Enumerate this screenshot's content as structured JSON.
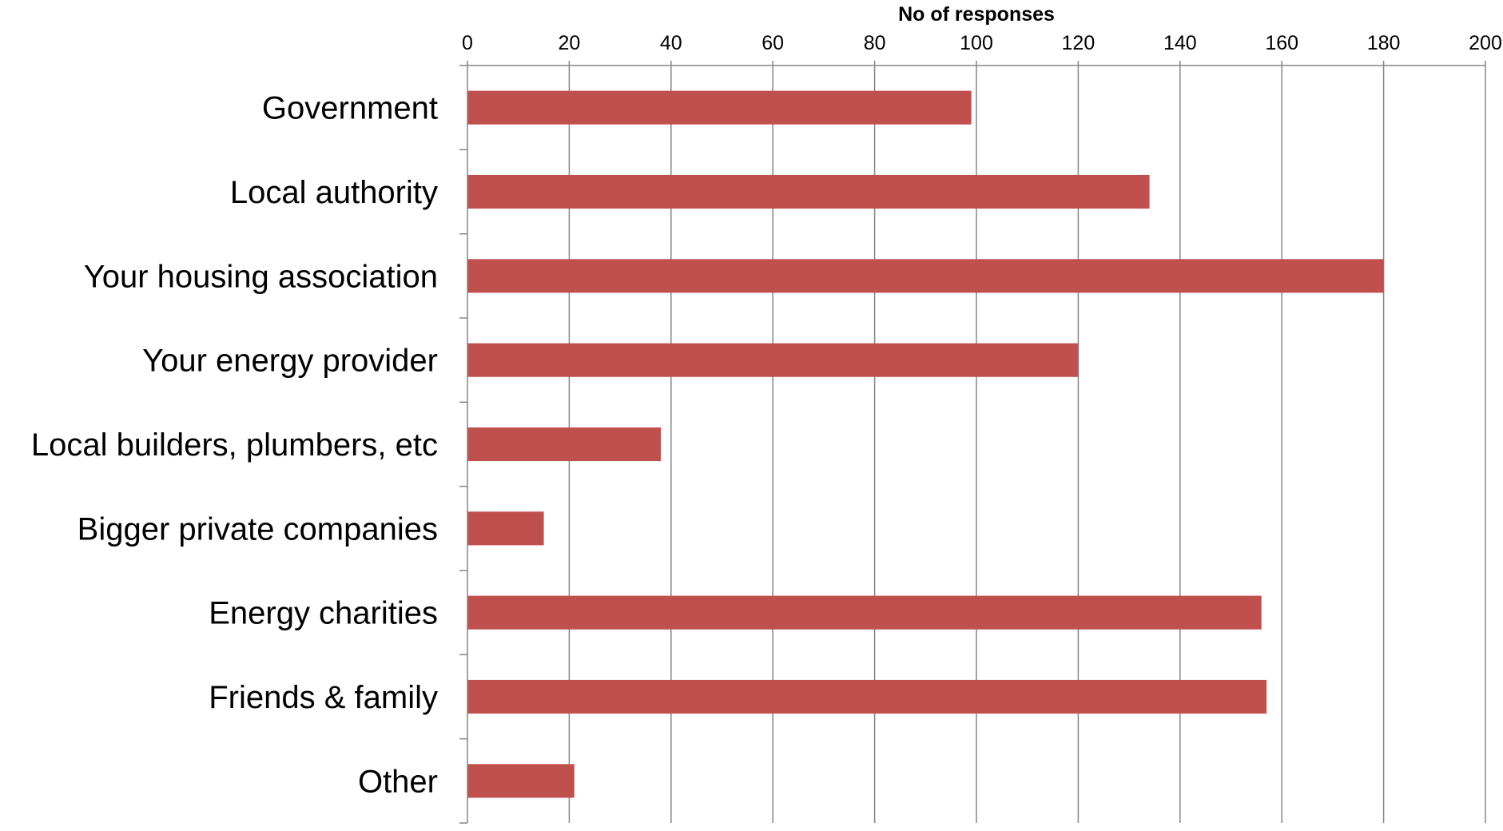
{
  "chart_data": {
    "type": "bar",
    "orientation": "horizontal",
    "xlabel": "No of responses",
    "xlabel_position": "top",
    "xlim": [
      0,
      200
    ],
    "xticks": [
      0,
      20,
      40,
      60,
      80,
      100,
      120,
      140,
      160,
      180,
      200
    ],
    "grid": true,
    "categories": [
      "Government",
      "Local authority",
      "Your housing association",
      "Your energy provider",
      "Local builders, plumbers, etc",
      "Bigger private companies",
      "Energy charities",
      "Friends & family",
      "Other"
    ],
    "values": [
      99,
      134,
      180,
      120,
      38,
      15,
      156,
      157,
      21
    ],
    "colors": {
      "bar": "#c0504d",
      "grid": "#868686",
      "text": "#000000"
    }
  }
}
